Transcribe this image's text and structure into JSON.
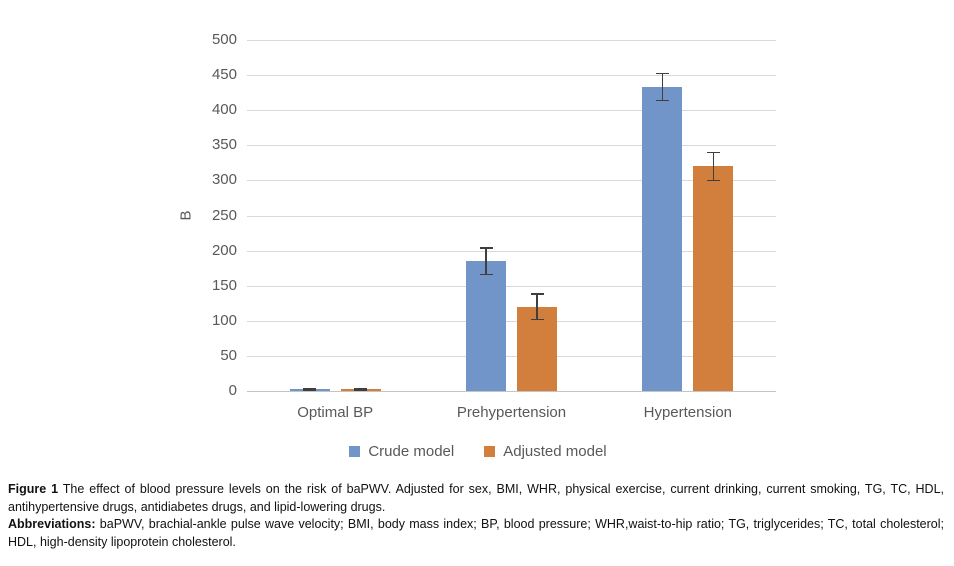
{
  "caption": {
    "figure_label": "Figure 1",
    "figure_text": "The effect of blood pressure levels on the risk of baPWV. Adjusted for sex, BMI, WHR, physical exercise, current drinking, current smoking, TG, TC, HDL, antihypertensive drugs, antidiabetes drugs, and lipid-lowering drugs.",
    "abbr_label": "Abbreviations:",
    "abbr_text": "baPWV, brachial-ankle pulse wave velocity; BMI, body mass index; BP, blood pressure; WHR,waist-to-hip ratio; TG, triglycerides; TC, total cholesterol; HDL, high-density lipoprotein cholesterol."
  },
  "chart_data": {
    "type": "bar",
    "title": "",
    "categories": [
      "Optimal BP",
      "Prehypertension",
      "Hypertension"
    ],
    "series": [
      {
        "name": "Crude model",
        "color": "#7295C9",
        "values": [
          2,
          185,
          433
        ],
        "errors": [
          2,
          20,
          20
        ]
      },
      {
        "name": "Adjusted model",
        "color": "#D27E3D",
        "values": [
          2,
          120,
          320
        ],
        "errors": [
          2,
          19,
          21
        ]
      }
    ],
    "xlabel": "",
    "ylabel": "B",
    "ylim": [
      0,
      500
    ],
    "yticks": [
      0,
      50,
      100,
      150,
      200,
      250,
      300,
      350,
      400,
      450,
      500
    ],
    "grid": true,
    "error_bars": true,
    "legend_position": "bottom",
    "colors": {
      "gridline": "#D9D9D9",
      "axis_line": "#C4C4C4",
      "tick_label": "#595959",
      "error_bar": "#3F3F3F",
      "caption_text": "#111111",
      "background": "#FFFFFF"
    }
  }
}
